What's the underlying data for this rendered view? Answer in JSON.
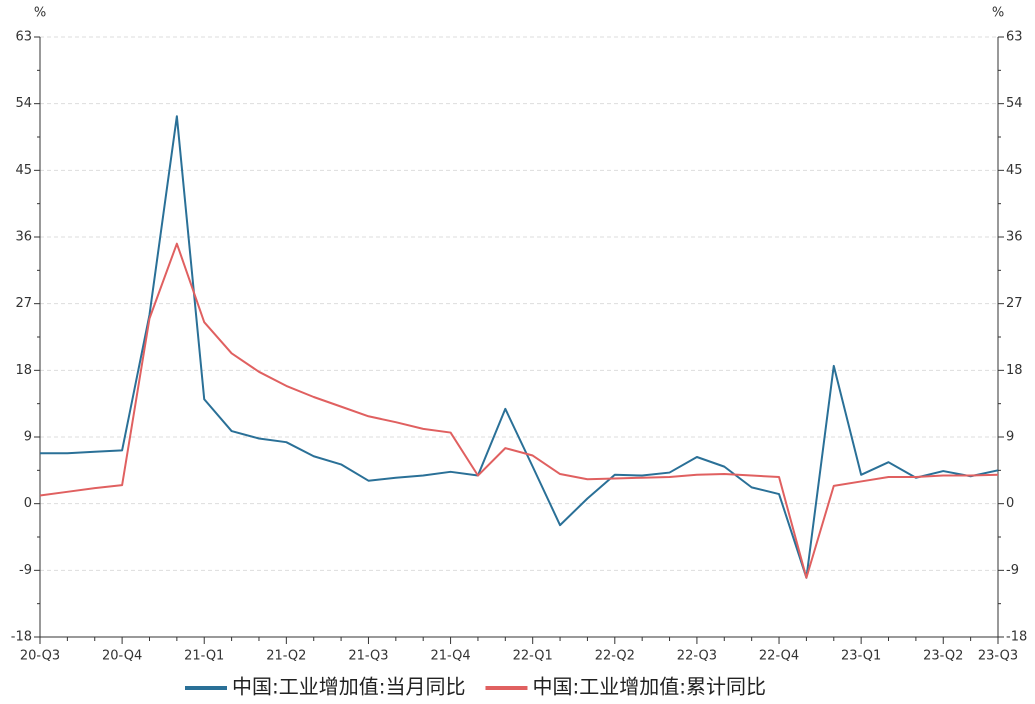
{
  "chart_data": {
    "type": "line",
    "categories": [
      "20-Q3",
      null,
      null,
      "20-Q4",
      null,
      null,
      "21-Q1",
      null,
      null,
      "21-Q2",
      null,
      null,
      "21-Q3",
      null,
      null,
      "21-Q4",
      null,
      null,
      "22-Q1",
      null,
      null,
      "22-Q2",
      null,
      null,
      "22-Q3",
      null,
      null,
      "22-Q4",
      null,
      null,
      "23-Q1",
      null,
      null,
      "23-Q2",
      null,
      "23-Q3"
    ],
    "series": [
      {
        "name": "中国:工业增加值:当月同比",
        "color": "#2a7097",
        "axis": "y",
        "values": [
          6.8,
          6.8,
          7.0,
          7.2,
          25.5,
          52.3,
          14.1,
          9.8,
          8.8,
          8.3,
          6.4,
          5.3,
          3.1,
          3.5,
          3.8,
          4.3,
          3.8,
          12.8,
          5.0,
          -2.9,
          0.7,
          3.9,
          3.8,
          4.2,
          6.3,
          5.0,
          2.2,
          1.3,
          -10.0,
          18.6,
          3.9,
          5.6,
          3.5,
          4.4,
          3.7,
          4.5
        ]
      },
      {
        "name": "中国:工业增加值:累计同比",
        "color": "#e06060",
        "axis": "y2",
        "values": [
          1.1,
          1.6,
          2.1,
          2.5,
          25.0,
          35.1,
          24.5,
          20.3,
          17.8,
          15.9,
          14.4,
          13.1,
          11.8,
          11.0,
          10.1,
          9.6,
          3.8,
          7.5,
          6.5,
          4.0,
          3.3,
          3.4,
          3.5,
          3.6,
          3.9,
          4.0,
          3.8,
          3.6,
          -10.0,
          2.4,
          3.0,
          3.6,
          3.6,
          3.8,
          3.8,
          3.9
        ]
      }
    ],
    "y_unit": "%",
    "y2_unit": "%",
    "ylim": [
      -18,
      63
    ],
    "yticks": [
      -18,
      -9,
      0,
      9,
      18,
      27,
      36,
      45,
      54,
      63
    ],
    "y2lim": [
      -18,
      63
    ],
    "y2ticks": [
      -18,
      -9,
      0,
      9,
      18,
      27,
      36,
      45,
      54,
      63
    ],
    "grid": true
  }
}
